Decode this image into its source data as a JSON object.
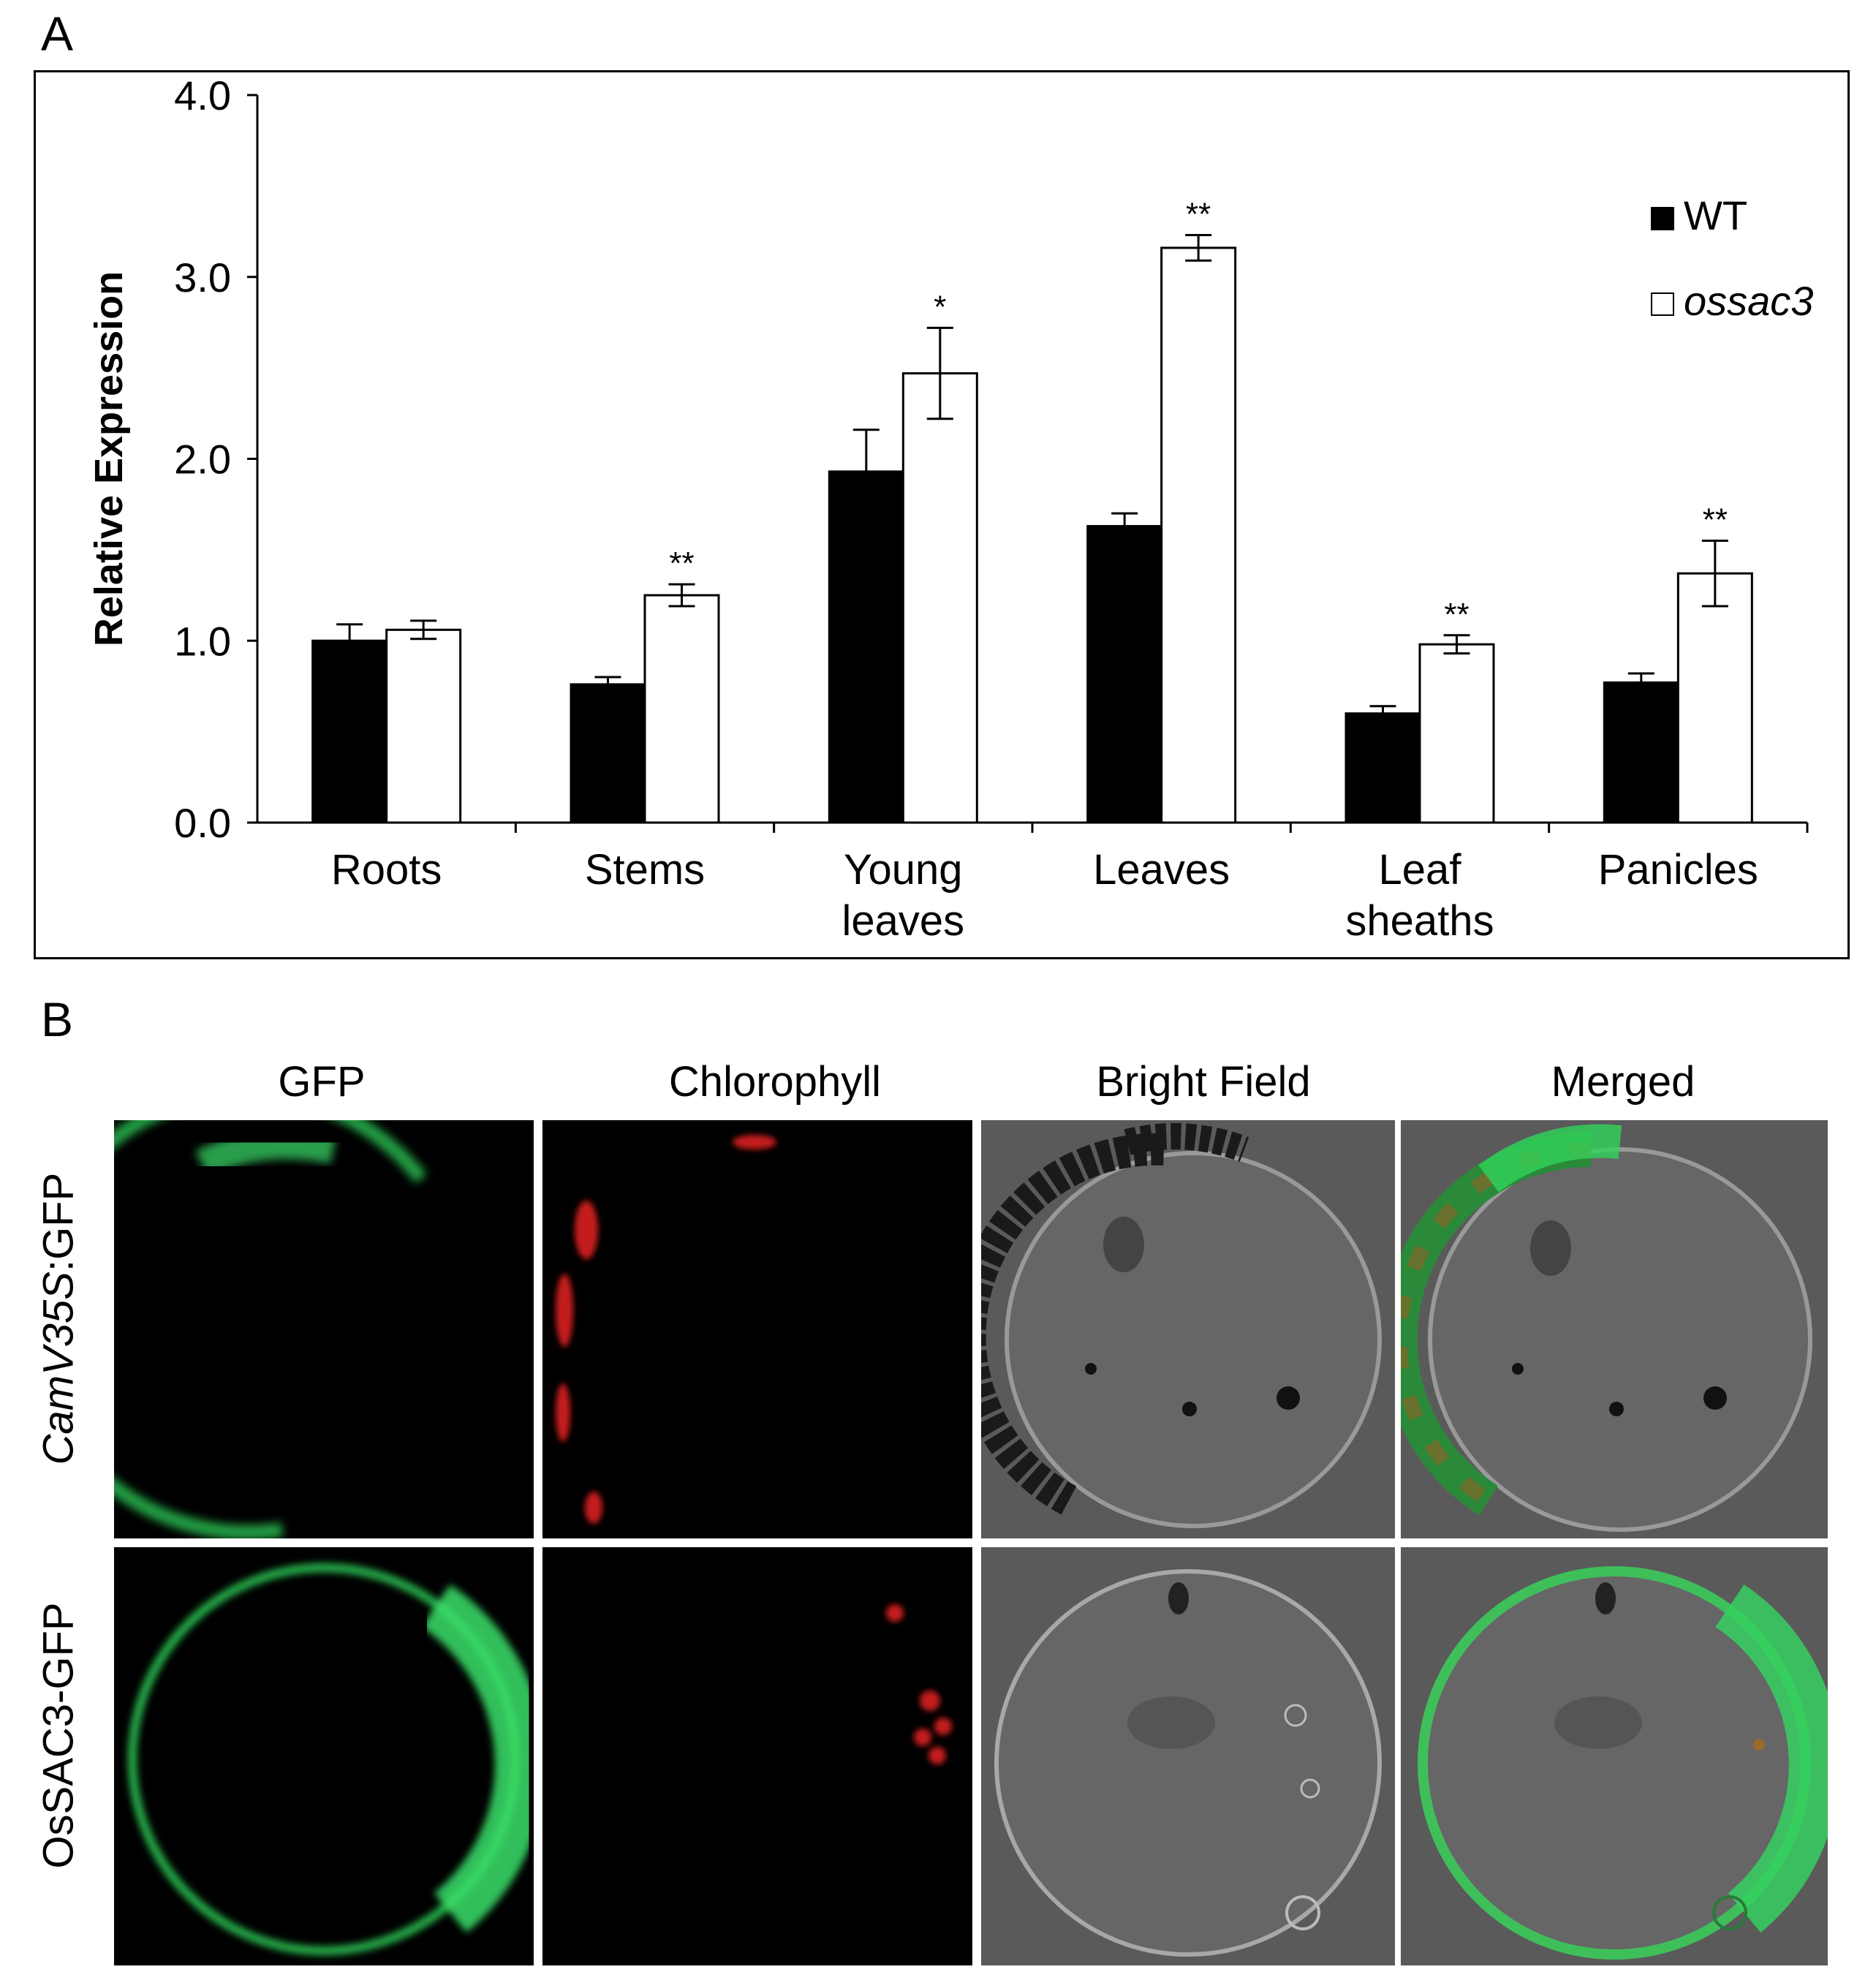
{
  "panels": {
    "a_letter": "A",
    "b_letter": "B"
  },
  "chart_data": {
    "type": "bar",
    "categories": [
      "Roots",
      "Stems",
      "Young leaves",
      "Leaves",
      "Leaf sheaths",
      "Panicles"
    ],
    "category_lines": [
      [
        "Roots"
      ],
      [
        "Stems"
      ],
      [
        "Young",
        "leaves"
      ],
      [
        "Leaves"
      ],
      [
        "Leaf",
        "sheaths"
      ],
      [
        "Panicles"
      ]
    ],
    "series": [
      {
        "name": "WT",
        "color": "#000000",
        "values": [
          1.0,
          0.76,
          1.93,
          1.63,
          0.6,
          0.77
        ],
        "errors": [
          0.09,
          0.04,
          0.23,
          0.07,
          0.04,
          0.05
        ],
        "significance": [
          "",
          "",
          "",
          "",
          "",
          ""
        ]
      },
      {
        "name": "ossac3",
        "color": "#ffffff",
        "values": [
          1.06,
          1.25,
          2.47,
          3.16,
          0.98,
          1.37
        ],
        "errors": [
          0.05,
          0.06,
          0.25,
          0.07,
          0.05,
          0.18
        ],
        "significance": [
          "",
          "**",
          "*",
          "**",
          "**",
          "**"
        ]
      }
    ],
    "ylabel": "Relative Expression",
    "ylim": [
      0,
      4.0
    ],
    "yticks": [
      "0.0",
      "1.0",
      "2.0",
      "3.0",
      "4.0"
    ],
    "legend_position": "top-right",
    "grid": false
  },
  "microscopy": {
    "columns": [
      "GFP",
      "Chlorophyll",
      "Bright Field",
      "Merged"
    ],
    "rows": [
      {
        "label_italic": "CamV35S",
        "label_rest": ":GFP"
      },
      {
        "label_italic": "",
        "label_rest": "OsSAC3-GFP"
      }
    ],
    "colors": {
      "gfp": "#2fd35a",
      "chlorophyll": "#d01818",
      "bright_bg": "#5a5a5a",
      "dark_bg": "#000000"
    }
  }
}
